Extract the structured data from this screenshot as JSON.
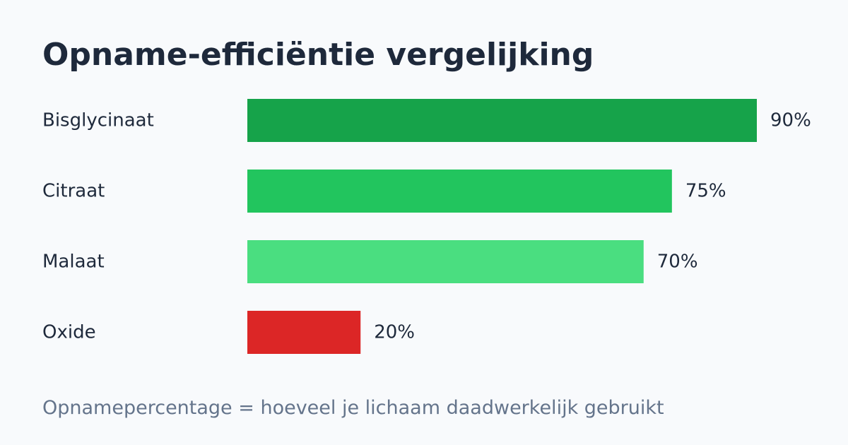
{
  "title": "Opname-efficiëntie vergelijking",
  "footnote": "Opnamepercentage = hoeveel je lichaam daadwerkelijk gebruikt",
  "chart_data": {
    "type": "bar",
    "orientation": "horizontal",
    "title": "Opname-efficiëntie vergelijking",
    "categories": [
      "Bisglycinaat",
      "Citraat",
      "Malaat",
      "Oxide"
    ],
    "values": [
      90,
      75,
      70,
      20
    ],
    "value_labels": [
      "90%",
      "75%",
      "70%",
      "20%"
    ],
    "unit": "%",
    "colors": [
      "#16a34a",
      "#22c55e",
      "#4ade80",
      "#dc2626"
    ],
    "xlim": [
      0,
      100
    ],
    "grid": false,
    "legend": "none"
  },
  "colors": {
    "background": "#f8fafc",
    "text": "#1e293b",
    "muted": "#64748b"
  }
}
